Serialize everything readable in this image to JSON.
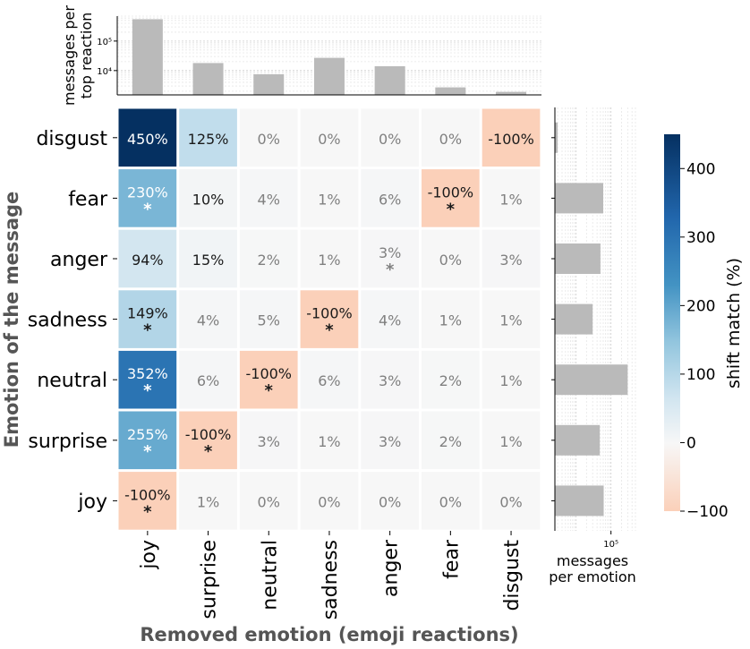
{
  "chart_data": {
    "type": "heatmap",
    "ylabel": "Emotion of the message",
    "xlabel": "Removed emotion (emoji reactions)",
    "rows": [
      "disgust",
      "fear",
      "anger",
      "sadness",
      "neutral",
      "surprise",
      "joy"
    ],
    "cols": [
      "joy",
      "surprise",
      "neutral",
      "sadness",
      "anger",
      "fear",
      "disgust"
    ],
    "values": [
      [
        450,
        125,
        0,
        0,
        0,
        0,
        -100
      ],
      [
        230,
        10,
        4,
        1,
        6,
        -100,
        1
      ],
      [
        94,
        15,
        2,
        1,
        3,
        0,
        3
      ],
      [
        149,
        4,
        5,
        -100,
        4,
        1,
        1
      ],
      [
        352,
        6,
        -100,
        6,
        3,
        2,
        1
      ],
      [
        255,
        -100,
        3,
        1,
        3,
        2,
        1
      ],
      [
        -100,
        1,
        0,
        0,
        0,
        0,
        0
      ]
    ],
    "significant": [
      [
        false,
        false,
        false,
        false,
        false,
        false,
        false
      ],
      [
        true,
        false,
        false,
        false,
        false,
        true,
        false
      ],
      [
        false,
        false,
        false,
        false,
        true,
        false,
        false
      ],
      [
        true,
        false,
        false,
        true,
        false,
        false,
        false
      ],
      [
        true,
        false,
        true,
        false,
        false,
        false,
        false
      ],
      [
        true,
        true,
        false,
        false,
        false,
        false,
        false
      ],
      [
        true,
        false,
        false,
        false,
        false,
        false,
        false
      ]
    ],
    "colorbar": {
      "label": "shift match (%)",
      "range": [
        -100,
        450
      ],
      "ticks": [
        400,
        300,
        200,
        100,
        0,
        -100
      ],
      "tick_labels": [
        "400",
        "300",
        "200",
        "100",
        "0",
        "−100"
      ]
    },
    "top_bar": {
      "type": "bar",
      "ylabel_lines": [
        "messages per",
        "top reaction"
      ],
      "scale": "log",
      "ylim": [
        1500,
        700000
      ],
      "ticks": [
        {
          "value": 10000,
          "label": "10⁴"
        },
        {
          "value": 100000,
          "label": "10⁵"
        }
      ],
      "categories": [
        "joy",
        "surprise",
        "neutral",
        "sadness",
        "anger",
        "fear",
        "disgust"
      ],
      "values": [
        550000,
        18000,
        7500,
        27000,
        14000,
        2700,
        1900
      ]
    },
    "right_bar": {
      "type": "bar",
      "orientation": "horizontal",
      "xlabel_lines": [
        "messages",
        "per emotion"
      ],
      "scale": "log",
      "xlim": [
        2500,
        500000
      ],
      "ticks": [
        {
          "value": 100000,
          "label": "10⁵"
        }
      ],
      "categories": [
        "disgust",
        "fear",
        "anger",
        "sadness",
        "neutral",
        "surprise",
        "joy"
      ],
      "values": [
        3000,
        60000,
        50000,
        30000,
        300000,
        48000,
        62000
      ]
    },
    "colors": {
      "negative": "#fbd0b9",
      "neutral": "#f7f7f7",
      "positive_dark": "#053061",
      "bar": "#bababa",
      "muted_text": "#808080"
    }
  }
}
